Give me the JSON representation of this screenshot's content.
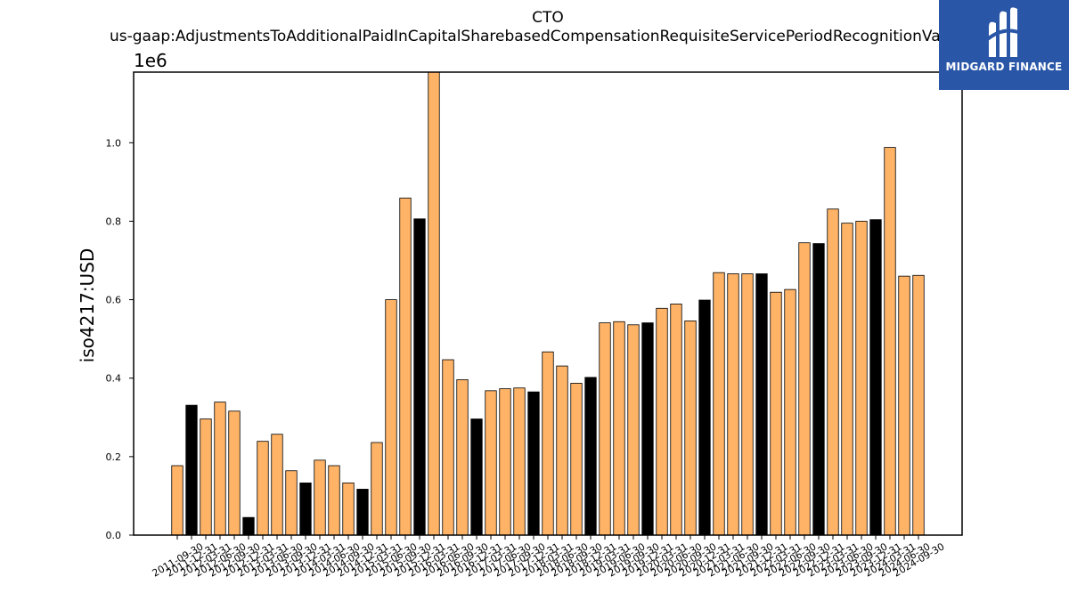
{
  "chart_data": {
    "type": "bar",
    "title": "CTO",
    "subtitle": "us-gaap:AdjustmentsToAdditionalPaidInCapitalSharebasedCompensationRequisiteServicePeriodRecognitionValue",
    "ylabel": "iso4217:USD",
    "xlabel": "",
    "y_multiplier_label": "1e6",
    "ylim": [
      0,
      1180000
    ],
    "yticks": [
      0,
      200000,
      400000,
      600000,
      800000,
      1000000
    ],
    "ytick_labels": [
      "0.0",
      "0.2",
      "0.4",
      "0.6",
      "0.8",
      "1.0"
    ],
    "grid": false,
    "legend": "none",
    "colors": {
      "quarter": "#ffb366",
      "year_end": "#000000",
      "edge": "#000000"
    },
    "categories": [
      "2011-09-30",
      "2011-12-31",
      "2012-03-31",
      "2012-06-30",
      "2012-09-30",
      "2012-12-31",
      "2013-03-31",
      "2013-06-30",
      "2013-09-30",
      "2013-12-31",
      "2014-03-31",
      "2014-06-30",
      "2014-09-30",
      "2014-12-31",
      "2015-03-31",
      "2015-06-30",
      "2015-09-30",
      "2015-12-31",
      "2016-03-31",
      "2016-06-30",
      "2016-09-30",
      "2016-12-31",
      "2017-03-31",
      "2017-06-30",
      "2017-09-30",
      "2017-12-31",
      "2018-03-31",
      "2018-06-30",
      "2018-09-30",
      "2018-12-31",
      "2019-03-31",
      "2019-06-30",
      "2019-09-30",
      "2019-12-31",
      "2020-03-31",
      "2020-06-30",
      "2020-09-30",
      "2020-12-31",
      "2021-03-31",
      "2021-06-30",
      "2021-09-30",
      "2021-12-31",
      "2022-03-31",
      "2022-06-30",
      "2022-09-30",
      "2022-12-31",
      "2023-03-31",
      "2023-06-30",
      "2023-09-30",
      "2023-12-31",
      "2024-03-31",
      "2024-06-30",
      "2024-09-30"
    ],
    "values": [
      177000,
      331000,
      296000,
      339000,
      316000,
      45000,
      239000,
      257000,
      164000,
      133000,
      191000,
      177000,
      133000,
      117000,
      236000,
      600000,
      859000,
      806000,
      1180000,
      447000,
      396000,
      296000,
      368000,
      373000,
      375000,
      365000,
      467000,
      431000,
      387000,
      402000,
      541000,
      544000,
      536000,
      541000,
      578000,
      589000,
      546000,
      599000,
      669000,
      666000,
      666000,
      666000,
      619000,
      626000,
      745000,
      743000,
      831000,
      795000,
      800000,
      804000,
      988000,
      660000,
      662000
    ],
    "highlight": [
      false,
      true,
      false,
      false,
      false,
      true,
      false,
      false,
      false,
      true,
      false,
      false,
      false,
      true,
      false,
      false,
      false,
      true,
      false,
      false,
      false,
      true,
      false,
      false,
      false,
      true,
      false,
      false,
      false,
      true,
      false,
      false,
      false,
      true,
      false,
      false,
      false,
      true,
      false,
      false,
      false,
      true,
      false,
      false,
      false,
      true,
      false,
      false,
      false,
      true,
      false,
      false,
      false
    ]
  },
  "logo": {
    "text": "MIDGARD FINANCE"
  }
}
